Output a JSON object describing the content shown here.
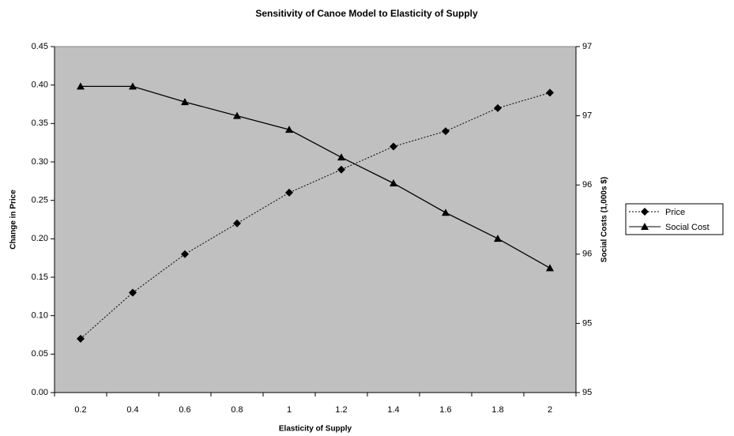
{
  "chart_data": {
    "type": "line",
    "title": "Sensitivity of Canoe Model to Elasticity of Supply",
    "x_label": "Elasticity of Supply",
    "y_label": "Change in Price",
    "y2_label": "Social Costs (1,000s $)",
    "categories": [
      "0.2",
      "0.4",
      "0.6",
      "0.8",
      "1",
      "1.2",
      "1.4",
      "1.6",
      "1.8",
      "2"
    ],
    "series": [
      {
        "name": "Price",
        "color": "#000000",
        "marker": "diamond",
        "dash": "dotted",
        "values": [
          0.07,
          0.13,
          0.18,
          0.22,
          0.26,
          0.29,
          0.32,
          0.34,
          0.37,
          0.39
        ]
      },
      {
        "name": "Social Cost",
        "color": "#000000",
        "marker": "triangle",
        "dash": "solid",
        "axis": "y2",
        "values": [
          96.77,
          96.77,
          96.68,
          96.6,
          96.52,
          96.36,
          96.21,
          96.04,
          95.89,
          95.72
        ]
      }
    ],
    "ylim": [
      0,
      0.45
    ],
    "yticks": [
      {
        "value": 0,
        "label": "0.00"
      },
      {
        "value": 0.05,
        "label": "0.05"
      },
      {
        "value": 0.1,
        "label": "0.10"
      },
      {
        "value": 0.15,
        "label": "0.15"
      },
      {
        "value": 0.2,
        "label": "0.20"
      },
      {
        "value": 0.25,
        "label": "0.25"
      },
      {
        "value": 0.3,
        "label": "0.30"
      },
      {
        "value": 0.35,
        "label": "0.35"
      },
      {
        "value": 0.4,
        "label": "0.40"
      },
      {
        "value": 0.45,
        "label": "0.45"
      }
    ],
    "y2lim": [
      95,
      97
    ],
    "y2ticks": [
      {
        "value": 95,
        "label": "95"
      },
      {
        "value": 95.4,
        "label": "95"
      },
      {
        "value": 95.8,
        "label": "96"
      },
      {
        "value": 96.2,
        "label": "96"
      },
      {
        "value": 96.6,
        "label": "97"
      },
      {
        "value": 97,
        "label": "97"
      }
    ],
    "plot_background": "#c0c0c0",
    "legend": "right"
  }
}
